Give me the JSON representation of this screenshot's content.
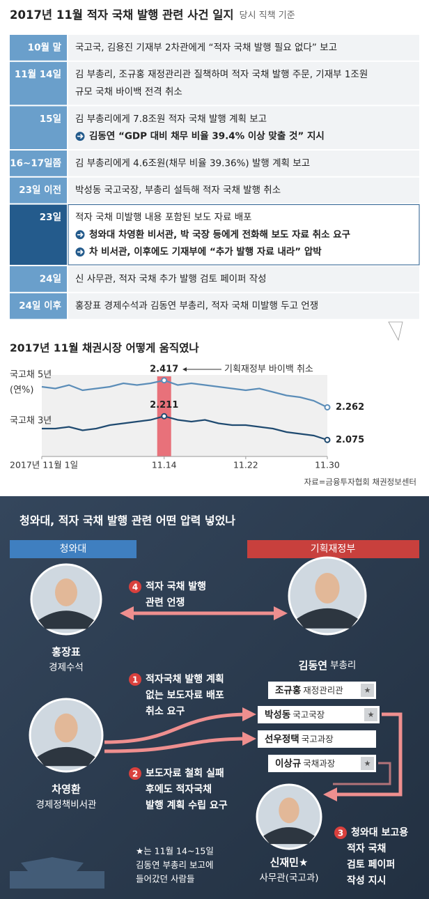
{
  "header": {
    "title": "2017년 11월 적자 국채 발행 관련 사건 일지",
    "subtitle": "당시 직책 기준"
  },
  "timeline": {
    "rows": [
      {
        "date": "10월 말",
        "lines": [
          {
            "text": "국고국, 김용진 기재부 2차관에게 “적자 국채 발행 필요 없다” 보고"
          }
        ]
      },
      {
        "date": "11월 14일",
        "lines": [
          {
            "text": "김 부총리, 조규홍 재정관리관 질책하며 적자 국채 발행 주문, 기재부 1조원"
          },
          {
            "text": "규모 국채 바이백 전격 취소"
          }
        ]
      },
      {
        "date": "15일",
        "lines": [
          {
            "text": "김 부총리에게 7.8조원 적자 국채 발행 계획 보고"
          },
          {
            "text": "김동연 “GDP 대비 채무 비율 39.4% 이상 맞출 것” 지시",
            "emphasis": true
          }
        ]
      },
      {
        "date": "16~17일쯤",
        "lines": [
          {
            "text": "김 부총리에게 4.6조원(채무 비율 39.36%) 발행 계획 보고"
          }
        ]
      },
      {
        "date": "23일 이전",
        "lines": [
          {
            "text": "박성동 국고국장, 부총리 설득해 적자 국채 발행 취소"
          }
        ]
      },
      {
        "date": "23일",
        "highlight": true,
        "lines": [
          {
            "text": "적자 국채 미발행 내용 포함된 보도 자료 배포"
          },
          {
            "text": "청와대 차영환 비서관, 박 국장 등에게 전화해 보도 자료 취소 요구",
            "emphasis": true
          },
          {
            "text": "차 비서관, 이후에도 기재부에 “추가 발행 자료 내라” 압박",
            "emphasis": true
          }
        ]
      },
      {
        "date": "24일",
        "lines": [
          {
            "text": "신 사무관, 적자 국채 추가 발행 검토 페이퍼 작성"
          }
        ]
      },
      {
        "date": "24일 이후",
        "lines": [
          {
            "text": "홍장표 경제수석과 김동연 부총리, 적자 국채 미발행 두고 언쟁"
          }
        ]
      }
    ]
  },
  "chart_data": {
    "type": "line",
    "title": "2017년 11월 채권시장 어떻게 움직였나",
    "y_unit": "(연%)",
    "annotation": {
      "text": "기획재정부 바이백 취소",
      "at": 9,
      "color": "#e8717a"
    },
    "source": "자료=금융투자협회 채권정보센터",
    "categories": [
      "2017년 11월 1일",
      null,
      null,
      null,
      null,
      null,
      null,
      null,
      null,
      "11.14",
      null,
      null,
      null,
      null,
      null,
      "11.22",
      null,
      null,
      null,
      null,
      null,
      "11.30"
    ],
    "ylim": [
      2.0,
      2.5
    ],
    "series": [
      {
        "name": "국고채 5년",
        "color": "#5b8db8",
        "values": [
          2.38,
          2.37,
          2.39,
          2.36,
          2.37,
          2.38,
          2.4,
          2.39,
          2.4,
          2.417,
          2.39,
          2.4,
          2.39,
          2.38,
          2.37,
          2.36,
          2.37,
          2.35,
          2.33,
          2.32,
          2.3,
          2.262
        ],
        "value_labels": [
          null,
          null,
          null,
          null,
          null,
          null,
          null,
          null,
          null,
          "2.417",
          null,
          null,
          null,
          null,
          null,
          null,
          null,
          null,
          null,
          null,
          null,
          "2.262"
        ]
      },
      {
        "name": "국고채 3년",
        "color": "#1f4a70",
        "values": [
          2.14,
          2.14,
          2.15,
          2.13,
          2.14,
          2.16,
          2.17,
          2.18,
          2.19,
          2.211,
          2.19,
          2.18,
          2.19,
          2.17,
          2.16,
          2.16,
          2.15,
          2.14,
          2.12,
          2.11,
          2.1,
          2.075
        ],
        "value_labels": [
          null,
          null,
          null,
          null,
          null,
          null,
          null,
          null,
          null,
          "2.211",
          null,
          null,
          null,
          null,
          null,
          null,
          null,
          null,
          null,
          null,
          null,
          "2.075"
        ]
      }
    ]
  },
  "diagram": {
    "title": "청와대, 적자 국채 발행 관련 어떤 압력 넣었나",
    "left_header": "청와대",
    "right_header": "기획재정부",
    "people": [
      {
        "name": "홍장표",
        "role": "경제수석"
      },
      {
        "name": "차영환",
        "role": "경제정책비서관"
      },
      {
        "name": "김동연",
        "role": "부총리"
      },
      {
        "name": "신재민★",
        "role": "사무관(국고과)"
      }
    ],
    "officials": [
      {
        "name": "조규홍",
        "role": "재정관리관",
        "star": "★"
      },
      {
        "name": "박성동",
        "role": "국고국장",
        "star": "★"
      },
      {
        "name": "선우정택",
        "role": "국고과장"
      },
      {
        "name": "이상규",
        "role": "국채과장",
        "star": "★"
      }
    ],
    "steps": [
      {
        "badge": "4",
        "lines": [
          "적자 국채 발행",
          "관련 언쟁"
        ]
      },
      {
        "badge": "1",
        "lines": [
          "적자국채 발행 계획",
          "없는 보도자료 배포",
          "취소 요구"
        ]
      },
      {
        "badge": "2",
        "lines": [
          "보도자료 철회 실패",
          "후에도 적자국채",
          "발행 계획 수립 요구"
        ]
      },
      {
        "badge": "3",
        "lines": [
          "청와대 보고용",
          "적자 국채",
          "검토 페이퍼",
          "작성 지시"
        ]
      }
    ],
    "note": [
      "★는 11월 14~15일",
      "김동연 부총리 보고에",
      "들어갔던 사람들"
    ]
  }
}
